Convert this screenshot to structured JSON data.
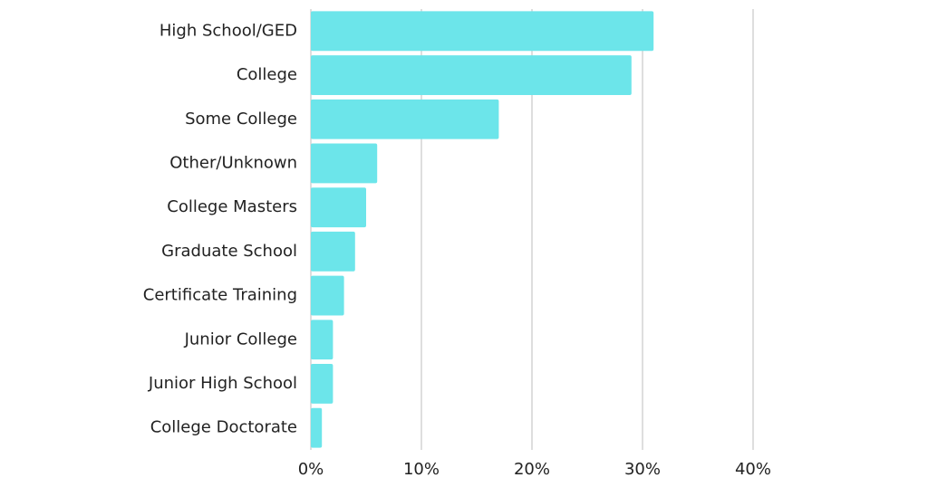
{
  "chart_data": {
    "type": "bar",
    "categories": [
      "High School/GED",
      "College",
      "Some College",
      "Other/Unknown",
      "College Masters",
      "Graduate School",
      "Certificate Training",
      "Junior College",
      "Junior High School",
      "College Doctorate"
    ],
    "values": [
      31,
      29,
      17,
      6,
      5,
      4,
      3,
      2,
      2,
      1
    ],
    "color": "#6ce5ea",
    "xlim": [
      0,
      40
    ],
    "xticks": [
      {
        "value": 0,
        "label": "0%"
      },
      {
        "value": 10,
        "label": "10%"
      },
      {
        "value": 20,
        "label": "20%"
      },
      {
        "value": 30,
        "label": "30%"
      },
      {
        "value": 40,
        "label": "40%"
      }
    ],
    "grid": true
  }
}
